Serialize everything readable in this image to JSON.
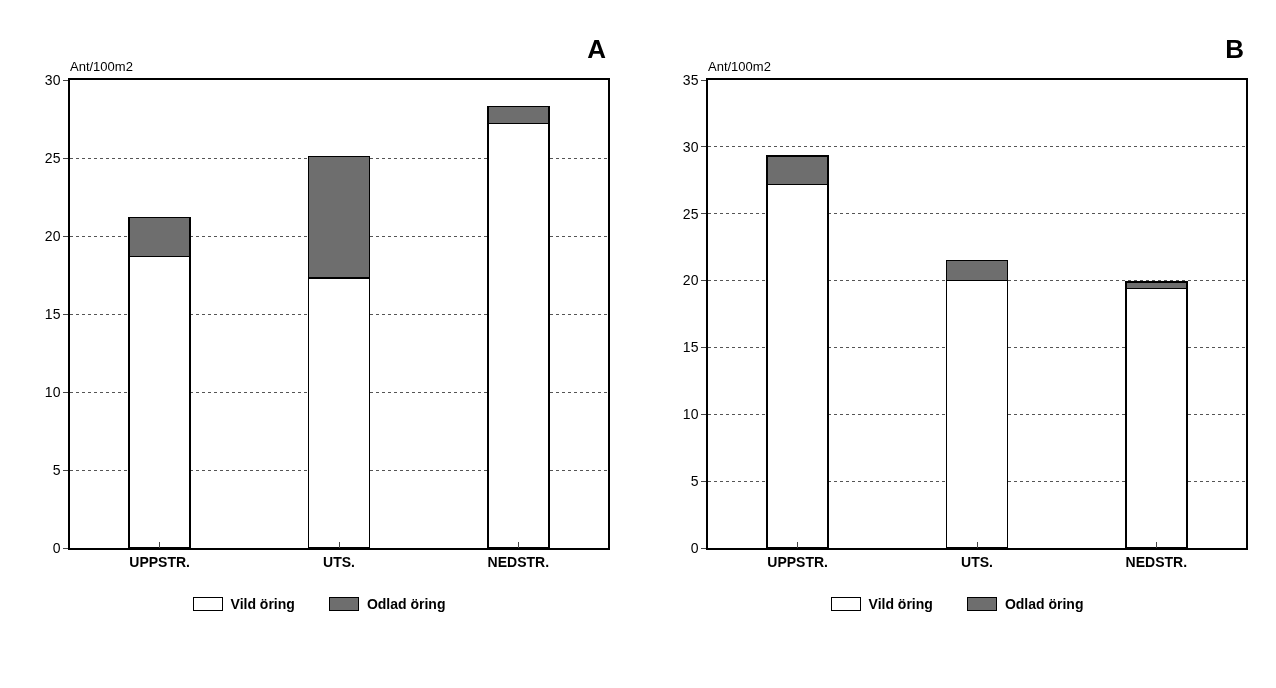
{
  "chart_data": [
    {
      "type": "bar",
      "title": "A",
      "ylabel": "Ant/100m2",
      "categories": [
        "UPPSTR.",
        "UTS.",
        "NEDSTR."
      ],
      "stacked": true,
      "series": [
        {
          "name": "Vild öring",
          "color": "#ffffff",
          "values": [
            18.7,
            17.3,
            27.2
          ]
        },
        {
          "name": "Odlad öring",
          "color": "#6e6e6e",
          "values": [
            2.5,
            7.8,
            1.1
          ]
        }
      ],
      "ylim": [
        0,
        30
      ],
      "yticks": [
        0,
        5,
        10,
        15,
        20,
        25,
        30
      ],
      "grid": "y",
      "legend": "bottom"
    },
    {
      "type": "bar",
      "title": "B",
      "ylabel": "Ant/100m2",
      "categories": [
        "UPPSTR.",
        "UTS.",
        "NEDSTR."
      ],
      "stacked": true,
      "series": [
        {
          "name": "Vild öring",
          "color": "#ffffff",
          "values": [
            27.2,
            20.0,
            19.4
          ]
        },
        {
          "name": "Odlad öring",
          "color": "#6e6e6e",
          "values": [
            2.1,
            1.5,
            0.5
          ]
        }
      ],
      "ylim": [
        0,
        35
      ],
      "yticks": [
        0,
        5,
        10,
        15,
        20,
        25,
        30,
        35
      ],
      "grid": "y",
      "legend": "bottom"
    }
  ]
}
